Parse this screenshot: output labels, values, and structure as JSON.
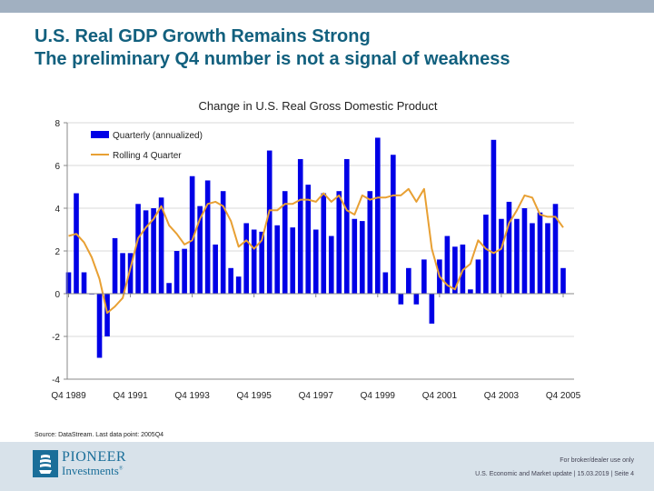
{
  "slide": {
    "title_line1": "U.S. Real GDP Growth Remains Strong",
    "title_line2": "The preliminary Q4 number is not a signal of weakness",
    "source": "Source: DataStream. Last data point: 2005Q4",
    "footer_line1": "For broker/dealer use only",
    "footer_line2": "U.S. Economic and Market update  | 15.03.2019  | Seite 4",
    "logo_line1": "PIONEER",
    "logo_line2": "Investments",
    "logo_mark": "®"
  },
  "colors": {
    "topbar": "#a1b0c1",
    "title": "#12607e",
    "bar": "#0000e6",
    "line": "#e8a033",
    "footer": "#d8e2ea",
    "brand": "#1a6e99"
  },
  "chart_data": {
    "type": "bar",
    "title": "Change in U.S. Real Gross Domestic Product",
    "xlabel": "",
    "ylabel": "",
    "ylim": [
      -4,
      8
    ],
    "yticks": [
      -4,
      -2,
      0,
      2,
      4,
      6,
      8
    ],
    "grid": true,
    "legend_position": "top-left",
    "x_tick_labels": [
      "Q4 1989",
      "Q4 1991",
      "Q4 1993",
      "Q4 1995",
      "Q4 1997",
      "Q4 1999",
      "Q4 2001",
      "Q4 2003",
      "Q4 2005"
    ],
    "series": [
      {
        "name": "Quarterly (annualized)",
        "type": "bar",
        "values": [
          1.0,
          4.7,
          1.0,
          0.0,
          -3.0,
          -2.0,
          2.6,
          1.9,
          1.9,
          4.2,
          3.9,
          4.0,
          4.5,
          0.5,
          2.0,
          2.1,
          5.5,
          4.1,
          5.3,
          2.3,
          4.8,
          1.2,
          0.8,
          3.3,
          3.0,
          2.9,
          6.7,
          3.2,
          4.8,
          3.1,
          6.3,
          5.1,
          3.0,
          4.7,
          2.7,
          4.8,
          6.3,
          3.5,
          3.4,
          4.8,
          7.3,
          1.0,
          6.5,
          -0.5,
          1.2,
          -0.5,
          1.6,
          -1.4,
          1.6,
          2.7,
          2.2,
          2.3,
          0.2,
          1.6,
          3.7,
          7.2,
          3.5,
          4.3,
          3.5,
          4.0,
          3.3,
          3.8,
          3.3,
          4.2,
          1.2
        ]
      },
      {
        "name": "Rolling 4 Quarter",
        "type": "line",
        "values": [
          2.7,
          2.8,
          2.4,
          1.7,
          0.7,
          -0.9,
          -0.6,
          -0.2,
          1.2,
          2.6,
          3.1,
          3.5,
          4.1,
          3.2,
          2.8,
          2.3,
          2.5,
          3.5,
          4.2,
          4.3,
          4.1,
          3.4,
          2.2,
          2.5,
          2.1,
          2.5,
          3.9,
          3.9,
          4.2,
          4.2,
          4.4,
          4.4,
          4.3,
          4.7,
          4.3,
          4.6,
          3.9,
          3.7,
          4.6,
          4.4,
          4.5,
          4.5,
          4.6,
          4.6,
          4.9,
          4.3,
          4.9,
          2.1,
          0.8,
          0.4,
          0.2,
          1.1,
          1.4,
          2.5,
          2.1,
          1.9,
          2.1,
          3.3,
          3.9,
          4.6,
          4.5,
          3.7,
          3.6,
          3.6,
          3.1
        ]
      }
    ]
  }
}
